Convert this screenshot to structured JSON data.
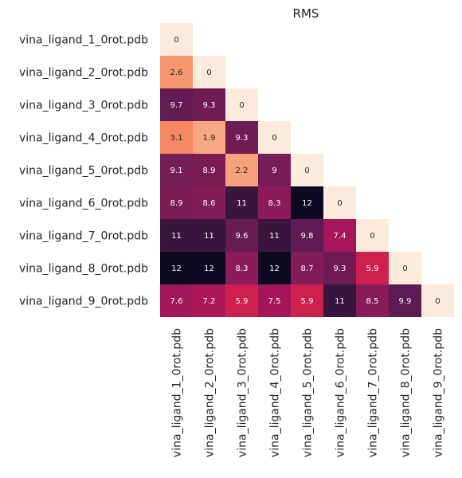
{
  "chart_data": {
    "type": "heatmap",
    "title": "RMS",
    "rows": [
      "vina_ligand_1_0rot.pdb",
      "vina_ligand_2_0rot.pdb",
      "vina_ligand_3_0rot.pdb",
      "vina_ligand_4_0rot.pdb",
      "vina_ligand_5_0rot.pdb",
      "vina_ligand_6_0rot.pdb",
      "vina_ligand_7_0rot.pdb",
      "vina_ligand_8_0rot.pdb",
      "vina_ligand_9_0rot.pdb"
    ],
    "columns": [
      "vina_ligand_1_0rot.pdb",
      "vina_ligand_2_0rot.pdb",
      "vina_ligand_3_0rot.pdb",
      "vina_ligand_4_0rot.pdb",
      "vina_ligand_5_0rot.pdb",
      "vina_ligand_6_0rot.pdb",
      "vina_ligand_7_0rot.pdb",
      "vina_ligand_8_0rot.pdb",
      "vina_ligand_9_0rot.pdb"
    ],
    "values": [
      [
        0
      ],
      [
        2.6,
        0
      ],
      [
        9.7,
        9.3,
        0
      ],
      [
        3.1,
        1.9,
        9.3,
        0
      ],
      [
        9.1,
        8.9,
        2.2,
        9,
        0
      ],
      [
        8.9,
        8.6,
        11,
        8.3,
        12,
        0
      ],
      [
        11,
        11,
        9.6,
        11,
        9.8,
        7.4,
        0
      ],
      [
        12,
        12,
        8.3,
        12,
        8.7,
        9.3,
        5.9,
        0
      ],
      [
        7.6,
        7.2,
        5.9,
        7.5,
        5.9,
        11,
        8.5,
        9.9,
        0
      ]
    ],
    "value_range": [
      0,
      12
    ],
    "colormap": "rocket_r",
    "colorbar": false,
    "annotated": true,
    "mask": "upper-triangle",
    "grid": false
  }
}
